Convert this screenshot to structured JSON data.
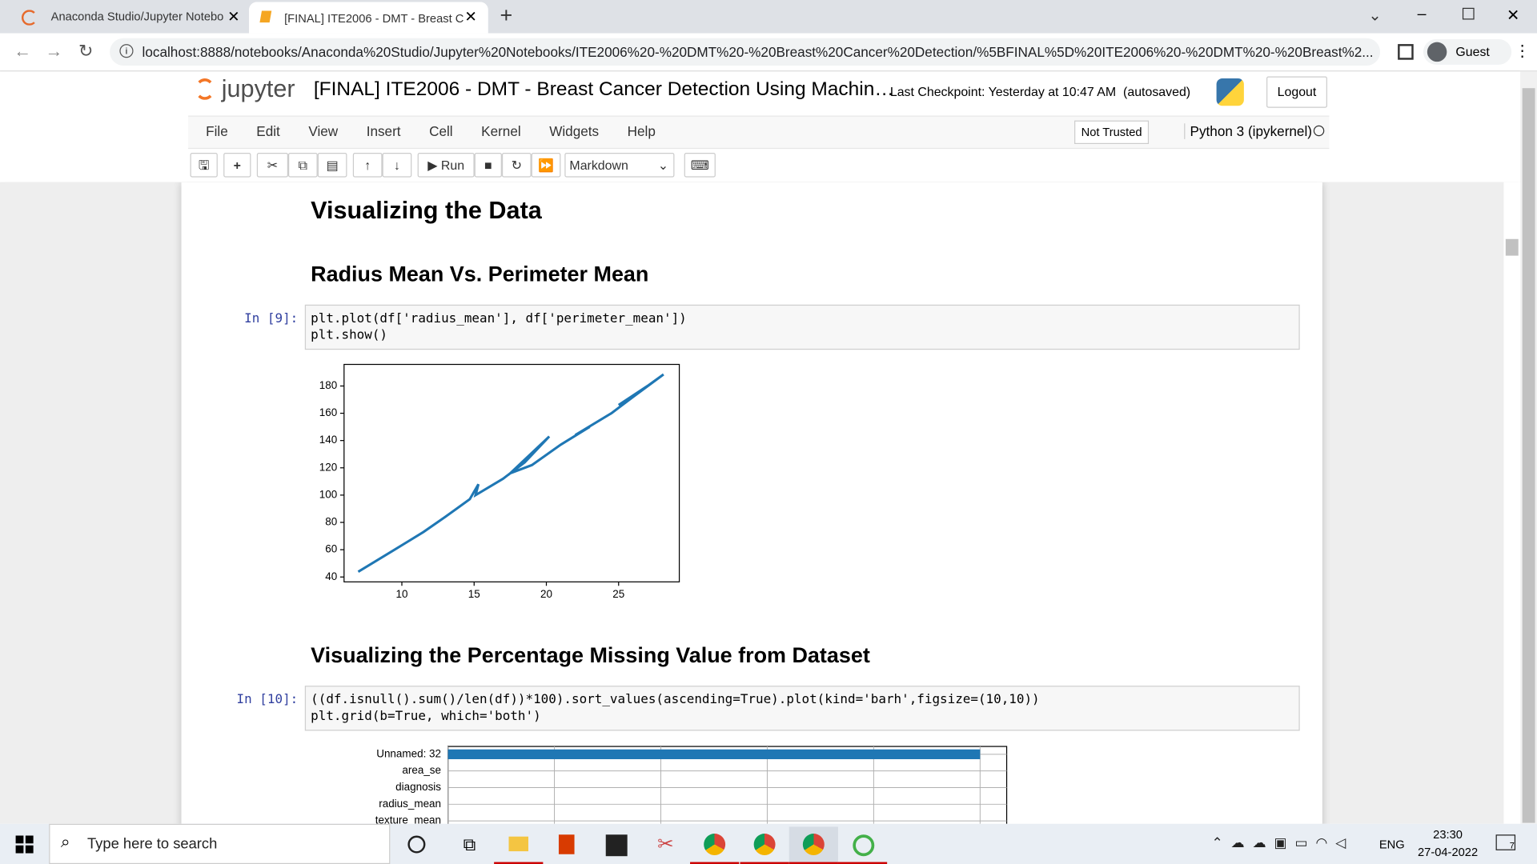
{
  "browser": {
    "tabs": [
      "Anaconda Studio/Jupyter Notebo",
      "[FINAL] ITE2006 - DMT - Breast C"
    ],
    "url": "localhost:8888/notebooks/Anaconda%20Studio/Jupyter%20Notebooks/ITE2006%20-%20DMT%20-%20Breast%20Cancer%20Detection/%5BFINAL%5D%20ITE2006%20-%20DMT%20-%20Breast%2...",
    "profile": "Guest"
  },
  "header": {
    "logo": "jupyter",
    "title": "[FINAL] ITE2006 - DMT - Breast Cancer Detection Using Machin…",
    "checkpoint_label": "Last Checkpoint:",
    "checkpoint": "Yesterday at 10:47 AM",
    "autosave": "(autosaved)",
    "logout": "Logout"
  },
  "menu": [
    "File",
    "Edit",
    "View",
    "Insert",
    "Cell",
    "Kernel",
    "Widgets",
    "Help"
  ],
  "trust": "Not Trusted",
  "kernel": "Python 3 (ipykernel)",
  "toolbar": {
    "run": "Run",
    "cell_type": "Markdown"
  },
  "cells": [
    {
      "heading": "Visualizing the Data"
    },
    {
      "heading": "Radius Mean Vs. Perimeter Mean"
    },
    {
      "prompt": "In [9]:",
      "code": [
        "plt.plot(df['radius_mean'], df['perimeter_mean'])",
        "plt.show()"
      ]
    },
    {
      "heading": "Visualizing the Percentage Missing Value from Dataset"
    },
    {
      "prompt": "In [10]:",
      "code": [
        "((df.isnull().sum()/len(df))*100).sort_values(ascending=True).plot(kind='barh',figsize=(10,10))",
        "plt.grid(b=True, which='both')"
      ]
    }
  ],
  "chart_data": [
    {
      "type": "line",
      "x": [
        6.98,
        9.5,
        11.5,
        13,
        14.7,
        15.3,
        15.1,
        17,
        18.5,
        20.2,
        17.5,
        19,
        21,
        23,
        22,
        24.5,
        26,
        28.11,
        27,
        25
      ],
      "series": [
        {
          "values": [
            43.8,
            60,
            73,
            84,
            97,
            108,
            100,
            112,
            124,
            143,
            116,
            122,
            137,
            150,
            144,
            160,
            172,
            188.5,
            180,
            166
          ],
          "color": "#1f77b4"
        }
      ],
      "xlim": [
        6,
        29.2
      ],
      "ylim": [
        36.4,
        195.8
      ],
      "xticks": [
        10,
        15,
        20,
        25
      ],
      "yticks": [
        40,
        60,
        80,
        100,
        120,
        140,
        160,
        180
      ]
    },
    {
      "type": "barh",
      "categories": [
        "Unnamed: 32",
        "area_se",
        "diagnosis",
        "radius_mean",
        "texture_mean"
      ],
      "values": [
        100,
        0,
        0,
        0,
        0
      ],
      "color": "#1f77b4",
      "xlim": [
        0,
        105
      ],
      "xticks": [
        0,
        20,
        40,
        60,
        80,
        100
      ],
      "grid": true
    }
  ],
  "taskbar": {
    "search": "Type here to search",
    "lang": "ENG",
    "time": "23:30",
    "date": "27-04-2022",
    "notifications": "7"
  }
}
